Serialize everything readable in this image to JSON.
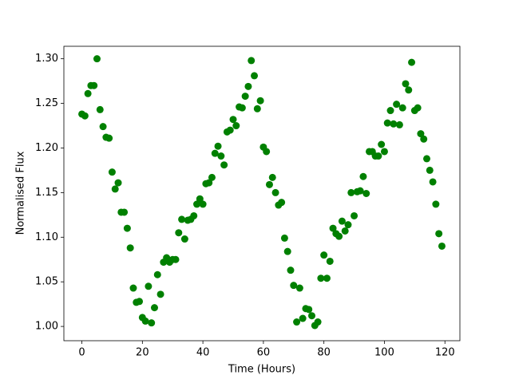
{
  "chart_data": {
    "type": "scatter",
    "xlabel": "Time (Hours)",
    "ylabel": "Normalised Flux",
    "x": [
      0,
      1,
      2,
      3,
      4,
      5,
      6,
      7,
      8,
      9,
      10,
      11,
      12,
      13,
      14,
      15,
      16,
      17,
      18,
      19,
      20,
      21,
      22,
      23,
      24,
      25,
      26,
      27,
      28,
      29,
      30,
      31,
      32,
      33,
      34,
      35,
      36,
      37,
      38,
      39,
      40,
      41,
      42,
      43,
      44,
      45,
      46,
      47,
      48,
      49,
      50,
      51,
      52,
      53,
      54,
      55,
      56,
      57,
      58,
      59,
      60,
      61,
      62,
      63,
      64,
      65,
      66,
      67,
      68,
      69,
      70,
      71,
      72,
      73,
      74,
      75,
      76,
      77,
      78,
      79,
      80,
      81,
      82,
      83,
      84,
      85,
      86,
      87,
      88,
      89,
      90,
      91,
      92,
      93,
      94,
      95,
      96,
      97,
      98,
      99,
      100,
      101,
      102,
      103,
      104,
      105,
      106,
      107,
      108,
      109,
      110,
      111,
      112,
      113,
      114,
      115,
      116,
      117,
      118,
      119
    ],
    "series": [
      {
        "color": "#008000",
        "values": [
          1.238,
          1.236,
          1.261,
          1.27,
          1.27,
          1.3,
          1.243,
          1.224,
          1.212,
          1.211,
          1.173,
          1.154,
          1.161,
          1.128,
          1.128,
          1.11,
          1.088,
          1.043,
          1.027,
          1.028,
          1.01,
          1.006,
          1.045,
          1.004,
          1.021,
          1.058,
          1.036,
          1.072,
          1.077,
          1.072,
          1.075,
          1.075,
          1.105,
          1.12,
          1.098,
          1.119,
          1.12,
          1.124,
          1.137,
          1.143,
          1.137,
          1.16,
          1.161,
          1.167,
          1.194,
          1.202,
          1.191,
          1.181,
          1.218,
          1.22,
          1.232,
          1.225,
          1.246,
          1.245,
          1.258,
          1.269,
          1.298,
          1.281,
          1.244,
          1.253,
          1.201,
          1.196,
          1.159,
          1.167,
          1.15,
          1.136,
          1.139,
          1.099,
          1.084,
          1.063,
          1.046,
          1.005,
          1.043,
          1.009,
          1.02,
          1.019,
          1.012,
          1.001,
          1.005,
          1.054,
          1.08,
          1.054,
          1.073,
          1.11,
          1.104,
          1.101,
          1.118,
          1.107,
          1.114,
          1.15,
          1.124,
          1.151,
          1.152,
          1.168,
          1.149,
          1.196,
          1.196,
          1.191,
          1.191,
          1.204,
          1.196,
          1.228,
          1.242,
          1.227,
          1.249,
          1.226,
          1.245,
          1.272,
          1.265,
          1.296,
          1.242,
          1.245,
          1.216,
          1.21,
          1.188,
          1.175,
          1.162,
          1.137,
          1.104,
          1.09
        ]
      }
    ],
    "xlim": [
      -5.95,
      124.95
    ],
    "xticks": [
      0,
      20,
      40,
      60,
      80,
      100,
      120
    ],
    "ylim": [
      0.984,
      1.314
    ],
    "yticks": [
      {
        "value": 1,
        "label": "1.00"
      },
      {
        "value": 1.05,
        "label": "1.05"
      },
      {
        "value": 1.1,
        "label": "1.10"
      },
      {
        "value": 1.15,
        "label": "1.15"
      },
      {
        "value": 1.2,
        "label": "1.20"
      },
      {
        "value": 1.25,
        "label": "1.25"
      },
      {
        "value": 1.3,
        "label": "1.30"
      }
    ],
    "grid": false
  }
}
